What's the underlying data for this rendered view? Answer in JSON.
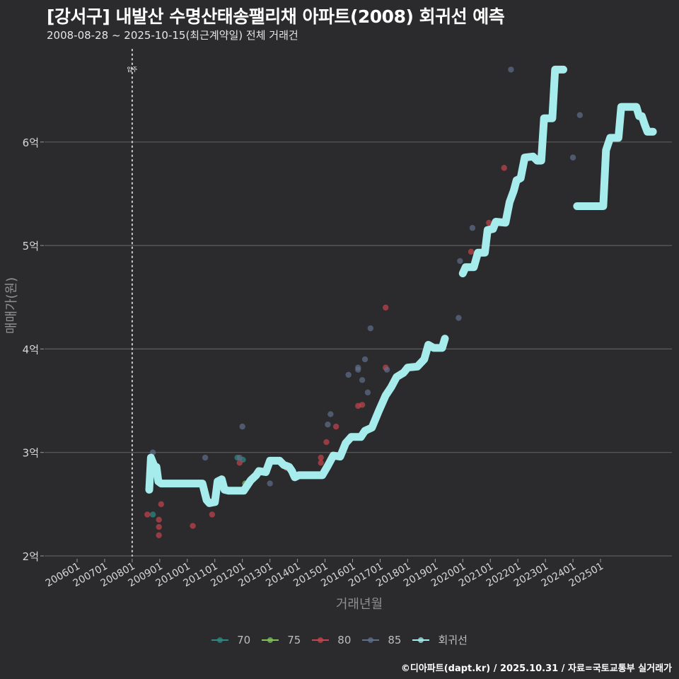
{
  "header": {
    "title": "[강서구] 내발산 수명산태송팰리채 아파트(2008) 회귀선 예측",
    "subtitle": "2008-08-28 ~ 2025-10-15(최근계약일) 전체 거래건"
  },
  "footer": {
    "credit": "©디아파트(dapt.kr) / 2025.10.31 / 자료=국토교통부 실거래가"
  },
  "annotation": {
    "label": "입주",
    "x": "2008-01"
  },
  "colors": {
    "background": "#2b2a2c",
    "grid": "#5e5d60",
    "regression": "#a6ecec",
    "s70": "#2e8b84",
    "s75": "#7fc35a",
    "s80": "#c8454d",
    "s85": "#5f6f8c"
  },
  "legend": {
    "items": [
      {
        "label": "70",
        "color": "#2e8b84"
      },
      {
        "label": "75",
        "color": "#7fc35a"
      },
      {
        "label": "80",
        "color": "#c8454d"
      },
      {
        "label": "85",
        "color": "#5f6f8c"
      },
      {
        "label": "회귀선",
        "color": "#a6ecec"
      }
    ]
  },
  "chart_data": {
    "type": "scatter",
    "title": "[강서구] 내발산 수명산태송팰리채 아파트(2008) 회귀선 예측",
    "subtitle": "2008-08-28 ~ 2025-10-15(최근계약일) 전체 거래건",
    "xlabel": "거래년월",
    "ylabel": "매매가(원)",
    "x_ticks": [
      "200601",
      "200701",
      "200801",
      "200901",
      "201001",
      "201101",
      "201201",
      "201301",
      "201401",
      "201501",
      "201601",
      "201701",
      "201801",
      "201901",
      "202001",
      "202101",
      "202201",
      "202301",
      "202401",
      "202501"
    ],
    "y_ticks": [
      "2억",
      "3억",
      "4억",
      "5억",
      "6억"
    ],
    "y_tick_values": [
      2,
      3,
      4,
      5,
      6
    ],
    "ylim": [
      2,
      6.9
    ],
    "xlim": [
      2005.6,
      2026.8
    ],
    "grid": true,
    "legend_position": "bottom",
    "units": "억원",
    "series": [
      {
        "name": "70",
        "points": [
          [
            2008.75,
            2.4
          ],
          [
            2011.82,
            2.95
          ],
          [
            2012.02,
            2.93
          ]
        ]
      },
      {
        "name": "75",
        "points": [
          [
            2012.1,
            2.7
          ]
        ]
      },
      {
        "name": "80",
        "points": [
          [
            2008.55,
            2.4
          ],
          [
            2009.05,
            2.5
          ],
          [
            2008.97,
            2.35
          ],
          [
            2008.97,
            2.28
          ],
          [
            2008.97,
            2.2
          ],
          [
            2010.2,
            2.29
          ],
          [
            2010.9,
            2.4
          ],
          [
            2011.9,
            2.9
          ],
          [
            2013.6,
            2.85
          ],
          [
            2014.85,
            2.95
          ],
          [
            2014.85,
            2.9
          ],
          [
            2015.05,
            3.1
          ],
          [
            2015.4,
            3.25
          ],
          [
            2016.2,
            3.45
          ],
          [
            2016.35,
            3.46
          ],
          [
            2016.5,
            3.2
          ],
          [
            2017.2,
            3.82
          ],
          [
            2017.2,
            4.4
          ],
          [
            2020.3,
            4.94
          ],
          [
            2020.95,
            5.22
          ],
          [
            2021.5,
            5.75
          ]
        ]
      },
      {
        "name": "85",
        "points": [
          [
            2008.75,
            3.0
          ],
          [
            2008.65,
            2.85
          ],
          [
            2008.65,
            2.8
          ],
          [
            2010.65,
            2.95
          ],
          [
            2011.9,
            2.95
          ],
          [
            2012.0,
            3.25
          ],
          [
            2013.0,
            2.7
          ],
          [
            2015.05,
            2.85
          ],
          [
            2015.2,
            3.37
          ],
          [
            2015.1,
            3.27
          ],
          [
            2015.85,
            3.75
          ],
          [
            2016.2,
            3.8
          ],
          [
            2016.45,
            3.9
          ],
          [
            2016.35,
            3.7
          ],
          [
            2016.55,
            3.58
          ],
          [
            2016.65,
            4.2
          ],
          [
            2017.25,
            3.8
          ],
          [
            2016.2,
            3.82
          ],
          [
            2019.85,
            4.3
          ],
          [
            2019.9,
            4.85
          ],
          [
            2020.35,
            5.17
          ],
          [
            2021.75,
            6.7
          ],
          [
            2024.0,
            5.85
          ],
          [
            2024.25,
            6.26
          ]
        ]
      }
    ],
    "regression": [
      [
        [
          2008.62,
          2.64
        ],
        [
          2008.68,
          2.95
        ],
        [
          2008.8,
          2.87
        ],
        [
          2008.88,
          2.86
        ],
        [
          2008.95,
          2.72
        ],
        [
          2009.05,
          2.7
        ],
        [
          2009.4,
          2.7
        ],
        [
          2010.4,
          2.7
        ],
        [
          2010.55,
          2.7
        ],
        [
          2010.7,
          2.54
        ],
        [
          2010.8,
          2.51
        ],
        [
          2011.0,
          2.52
        ],
        [
          2011.1,
          2.72
        ],
        [
          2011.25,
          2.74
        ],
        [
          2011.35,
          2.64
        ],
        [
          2011.5,
          2.63
        ],
        [
          2012.05,
          2.63
        ],
        [
          2012.3,
          2.73
        ],
        [
          2012.5,
          2.78
        ],
        [
          2012.6,
          2.82
        ],
        [
          2012.85,
          2.81
        ],
        [
          2013.0,
          2.92
        ],
        [
          2013.35,
          2.92
        ],
        [
          2013.5,
          2.88
        ],
        [
          2013.7,
          2.86
        ],
        [
          2013.8,
          2.82
        ],
        [
          2013.9,
          2.76
        ],
        [
          2014.05,
          2.78
        ],
        [
          2014.9,
          2.78
        ],
        [
          2015.1,
          2.87
        ],
        [
          2015.3,
          2.97
        ],
        [
          2015.55,
          2.96
        ],
        [
          2015.75,
          3.09
        ],
        [
          2015.95,
          3.15
        ],
        [
          2016.3,
          3.15
        ],
        [
          2016.45,
          3.21
        ],
        [
          2016.7,
          3.24
        ],
        [
          2016.95,
          3.4
        ],
        [
          2017.2,
          3.55
        ],
        [
          2017.4,
          3.63
        ],
        [
          2017.6,
          3.73
        ],
        [
          2017.85,
          3.77
        ],
        [
          2018.0,
          3.82
        ],
        [
          2018.35,
          3.83
        ],
        [
          2018.6,
          3.9
        ],
        [
          2018.75,
          4.04
        ],
        [
          2018.95,
          4.01
        ],
        [
          2019.25,
          4.01
        ],
        [
          2019.35,
          4.1
        ]
      ],
      [
        [
          2020.0,
          4.73
        ],
        [
          2020.1,
          4.79
        ],
        [
          2020.4,
          4.79
        ],
        [
          2020.55,
          4.93
        ],
        [
          2020.8,
          4.93
        ],
        [
          2020.9,
          5.15
        ],
        [
          2021.1,
          5.16
        ],
        [
          2021.2,
          5.23
        ],
        [
          2021.55,
          5.22
        ],
        [
          2021.7,
          5.42
        ],
        [
          2021.85,
          5.53
        ],
        [
          2021.95,
          5.63
        ],
        [
          2022.1,
          5.65
        ],
        [
          2022.25,
          5.85
        ],
        [
          2022.55,
          5.86
        ],
        [
          2022.7,
          5.82
        ],
        [
          2022.85,
          5.82
        ],
        [
          2022.95,
          6.23
        ],
        [
          2023.25,
          6.23
        ],
        [
          2023.35,
          6.7
        ],
        [
          2023.65,
          6.7
        ]
      ],
      [
        [
          2024.15,
          5.38
        ],
        [
          2025.1,
          5.38
        ],
        [
          2025.2,
          5.92
        ],
        [
          2025.35,
          6.04
        ],
        [
          2025.65,
          6.04
        ],
        [
          2025.75,
          6.34
        ],
        [
          2026.3,
          6.34
        ],
        [
          2026.4,
          6.25
        ],
        [
          2026.5,
          6.25
        ],
        [
          2026.6,
          6.17
        ],
        [
          2026.7,
          6.1
        ],
        [
          2026.9,
          6.1
        ]
      ]
    ]
  }
}
